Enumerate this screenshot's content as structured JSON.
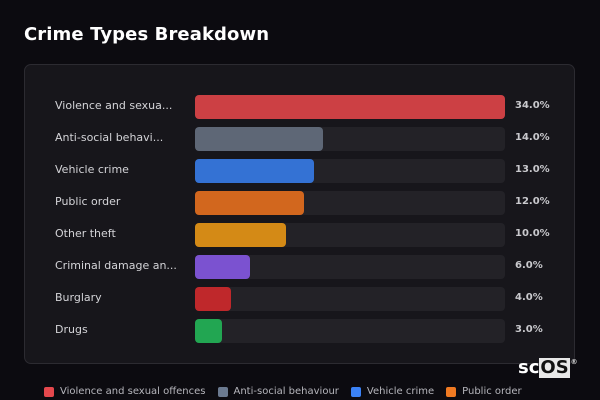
{
  "header": {
    "title": "Crime Types Breakdown"
  },
  "chart_data": {
    "type": "bar",
    "orientation": "horizontal",
    "title": "Crime Types Breakdown",
    "xlabel": "",
    "ylabel": "",
    "unit": "%",
    "xlim": [
      0,
      34
    ],
    "grid": false,
    "legend_position": "bottom",
    "categories": [
      "Violence and sexual offences",
      "Anti-social behaviour",
      "Vehicle crime",
      "Public order",
      "Other theft",
      "Criminal damage and arson",
      "Burglary",
      "Drugs"
    ],
    "display_labels": [
      "Violence and sexua...",
      "Anti-social behavi...",
      "Vehicle crime",
      "Public order",
      "Other theft",
      "Criminal damage an...",
      "Burglary",
      "Drugs"
    ],
    "values": [
      34.0,
      14.0,
      13.0,
      12.0,
      10.0,
      6.0,
      4.0,
      3.0
    ],
    "value_labels": [
      "34.0%",
      "14.0%",
      "13.0%",
      "12.0%",
      "10.0%",
      "6.0%",
      "4.0%",
      "3.0%"
    ],
    "colors": [
      "#cc4044",
      "#5e6776",
      "#3472d4",
      "#d2671e",
      "#d48a16",
      "#7b52d0",
      "#bf282b",
      "#22a652"
    ]
  },
  "legend": {
    "items": [
      {
        "label": "Violence and sexual offences",
        "color": "#e5484d"
      },
      {
        "label": "Anti-social behaviour",
        "color": "#6b7a90"
      },
      {
        "label": "Vehicle crime",
        "color": "#3b82f6"
      },
      {
        "label": "Public order",
        "color": "#f07a22"
      }
    ]
  },
  "watermark": {
    "sc": "sc",
    "os": "OS",
    "reg": "®"
  }
}
